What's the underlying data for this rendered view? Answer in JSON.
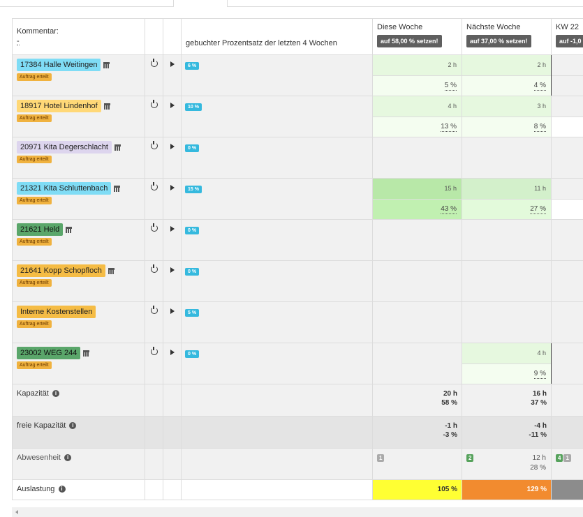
{
  "colors": {
    "tag_light_blue": "#7fdcf5",
    "tag_yellow": "#ffd877",
    "tag_lavender": "#ddd5ee",
    "tag_green": "#5aa66a",
    "tag_orange": "#f5bc45",
    "status_badge": "#f0b23f",
    "pct_badge": "#35b9de",
    "light_green": "#e6f8df",
    "mid_green": "#d3f0cb",
    "bright_green": "#c1f0b1",
    "pale_green": "#f4fdf0",
    "util_yellow": "#ffff33",
    "util_orange": "#f28b2f",
    "util_gray": "#8c8c8c"
  },
  "header": {
    "kommentar_label": "Kommentar:",
    "kommentar_value": "-",
    "pct_header": "gebuchter Prozentsatz der letzten 4 Wochen",
    "weeks": [
      {
        "title": "Diese Woche",
        "button": "auf 58,00 % setzen!"
      },
      {
        "title": "Nächste Woche",
        "button": "auf 37,00 % setzen!"
      },
      {
        "title": "KW 22",
        "button": "auf -1,0"
      }
    ]
  },
  "projects": [
    {
      "name": "17384 Halle Weitingen",
      "status": "Auftrag erteilt",
      "percent": "6 %",
      "w1_h": "2 h",
      "w1_p": "5 %",
      "w2_h": "2 h",
      "w2_p": "4 %"
    },
    {
      "name": "18917 Hotel Lindenhof",
      "status": "Auftrag erteilt",
      "percent": "10 %",
      "w1_h": "4 h",
      "w1_p": "13 %",
      "w2_h": "3 h",
      "w2_p": "8 %"
    },
    {
      "name": "20971 Kita Degerschlacht",
      "status": "Auftrag erteilt",
      "percent": "0 %"
    },
    {
      "name": "21321 Kita Schluttenbach",
      "status": "Auftrag erteilt",
      "percent": "15 %",
      "w1_h": "15 h",
      "w1_p": "43 %",
      "w2_h": "11 h",
      "w2_p": "27 %"
    },
    {
      "name": "21621 Held",
      "status": "Auftrag erteilt",
      "percent": "0 %"
    },
    {
      "name": "21641 Kopp Schopfloch",
      "status": "Auftrag erteilt",
      "percent": "0 %"
    },
    {
      "name": "Interne Kostenstellen",
      "status": "Auftrag erteilt",
      "percent": "5 %"
    },
    {
      "name": "23002 WEG 244",
      "status": "Auftrag erteilt",
      "percent": "0 %",
      "w2_h": "4 h",
      "w2_p": "9 %"
    }
  ],
  "summary": {
    "kapazitaet": {
      "label": "Kapazität",
      "w1_h": "20 h",
      "w1_p": "58 %",
      "w2_h": "16 h",
      "w2_p": "37 %"
    },
    "freie": {
      "label": "freie Kapazität",
      "w1_h": "-1 h",
      "w1_p": "-3 %",
      "w2_h": "-4 h",
      "w2_p": "-11 %"
    },
    "abwesenheit": {
      "label": "Abwesenheit",
      "w1_badge": "1",
      "w2_badge": "2",
      "w2_h": "12 h",
      "w2_p": "28 %",
      "w3_badge_a": "4",
      "w3_badge_b": "1"
    },
    "auslastung": {
      "label": "Auslastung",
      "w1": "105 %",
      "w2": "129 %"
    }
  }
}
